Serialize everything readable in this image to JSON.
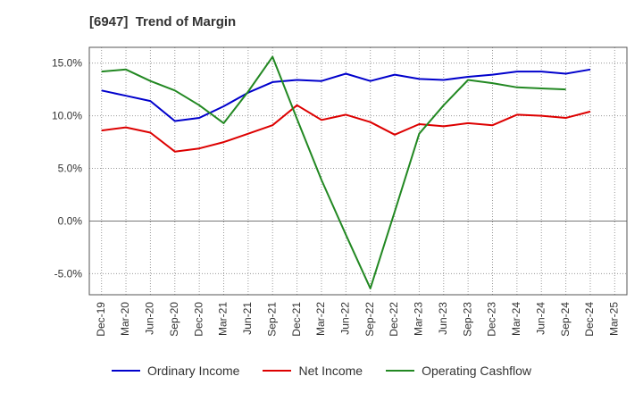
{
  "chart_data": {
    "type": "line",
    "title": "[6947]  Trend of Margin",
    "xlabel": "",
    "ylabel": "",
    "ylim": [
      -7,
      16.5
    ],
    "yticks": [
      15,
      10,
      5,
      0,
      -5
    ],
    "ytick_labels": [
      "15.0%",
      "10.0%",
      "5.0%",
      "0.0%",
      "-5.0%"
    ],
    "categories": [
      "Dec-19",
      "Mar-20",
      "Jun-20",
      "Sep-20",
      "Dec-20",
      "Mar-21",
      "Jun-21",
      "Sep-21",
      "Dec-21",
      "Mar-22",
      "Jun-22",
      "Sep-22",
      "Dec-22",
      "Mar-23",
      "Jun-23",
      "Sep-23",
      "Dec-23",
      "Mar-24",
      "Jun-24",
      "Sep-24",
      "Dec-24",
      "Mar-25"
    ],
    "grid": true,
    "legend_position": "bottom",
    "series": [
      {
        "name": "Ordinary Income",
        "color": "#0000cc",
        "values": [
          12.4,
          11.9,
          11.4,
          9.5,
          9.8,
          10.9,
          12.2,
          13.2,
          13.4,
          13.3,
          14.0,
          13.3,
          13.9,
          13.5,
          13.4,
          13.7,
          13.9,
          14.2,
          14.2,
          14.0,
          14.4,
          null
        ]
      },
      {
        "name": "Net Income",
        "color": "#dd0000",
        "values": [
          8.6,
          8.9,
          8.4,
          6.6,
          6.9,
          7.5,
          8.3,
          9.1,
          11.0,
          9.6,
          10.1,
          9.4,
          8.2,
          9.2,
          9.0,
          9.3,
          9.1,
          10.1,
          10.0,
          9.8,
          10.4,
          null
        ]
      },
      {
        "name": "Operating Cashflow",
        "color": "#228822",
        "values": [
          14.2,
          14.4,
          13.3,
          12.4,
          11.0,
          9.3,
          12.3,
          15.6,
          9.7,
          3.9,
          -1.3,
          -6.4,
          0.9,
          8.3,
          11.0,
          13.4,
          13.1,
          12.7,
          12.6,
          12.5,
          null,
          null
        ]
      }
    ]
  }
}
